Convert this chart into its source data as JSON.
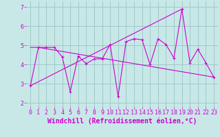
{
  "xlabel": "Windchill (Refroidissement éolien,°C)",
  "ylabel": "",
  "background_color": "#c8e8e8",
  "grid_color": "#a0c8c8",
  "line_color": "#cc00cc",
  "xlim": [
    -0.5,
    23.5
  ],
  "ylim": [
    1.8,
    7.3
  ],
  "yticks": [
    2,
    3,
    4,
    5,
    6,
    7
  ],
  "xticks": [
    0,
    1,
    2,
    3,
    4,
    5,
    6,
    7,
    8,
    9,
    10,
    11,
    12,
    13,
    14,
    15,
    16,
    17,
    18,
    19,
    20,
    21,
    22,
    23
  ],
  "line1_x": [
    0,
    1,
    2,
    3,
    4,
    5,
    6,
    7,
    8,
    9,
    10,
    11,
    12,
    13,
    14,
    15,
    16,
    17,
    18,
    19,
    20,
    21,
    22,
    23
  ],
  "line1_y": [
    2.9,
    4.9,
    4.9,
    4.9,
    4.4,
    2.6,
    4.45,
    4.05,
    4.3,
    4.3,
    5.05,
    2.35,
    5.2,
    5.35,
    5.3,
    4.0,
    5.35,
    5.05,
    4.35,
    6.9,
    4.1,
    4.8,
    4.1,
    3.35
  ],
  "line2_x": [
    0,
    19
  ],
  "line2_y": [
    2.9,
    6.9
  ],
  "line3_x": [
    0,
    1,
    23
  ],
  "line3_y": [
    4.9,
    4.9,
    3.35
  ],
  "tick_fontsize": 6,
  "xlabel_fontsize": 7
}
